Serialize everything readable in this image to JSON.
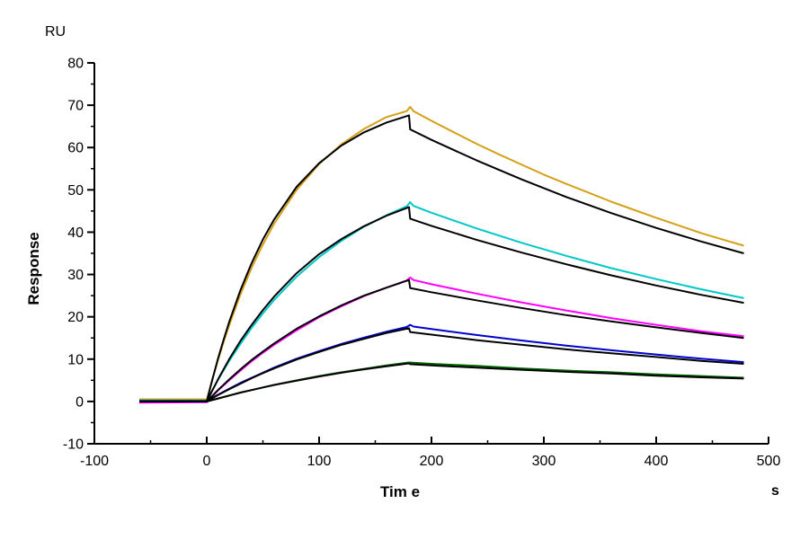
{
  "labels": {
    "response_unit": "RU",
    "y_axis_title": "Response",
    "x_axis_title": "Tim e",
    "x_axis_unit": "s"
  },
  "axes": {
    "x": {
      "range": [
        -100,
        500
      ],
      "major_ticks": [
        -100,
        0,
        100,
        200,
        300,
        400,
        500
      ],
      "minor_ticks": [
        -50,
        50,
        150,
        250,
        350,
        450
      ]
    },
    "y": {
      "range": [
        -10,
        80
      ],
      "major_ticks": [
        -10,
        0,
        10,
        20,
        30,
        40,
        50,
        60,
        70,
        80
      ],
      "minor_ticks": [
        -5,
        5,
        15,
        25,
        35,
        45,
        55,
        65,
        75
      ]
    }
  },
  "chart_data": {
    "type": "line",
    "title": "",
    "xlabel": "Tim e",
    "ylabel": "Response",
    "x_unit": "s",
    "y_unit": "RU",
    "xlim": [
      -100,
      500
    ],
    "ylim": [
      -10,
      80
    ],
    "grid": false,
    "legend": "none",
    "description": "SPR sensorgram: five concentration traces (association 0-180 s, dissociation 180-478 s) each overlaid with a black kinetic fit curve",
    "phases": {
      "baseline_start_s": -60,
      "injection_start_s": 0,
      "injection_stop_s": 180,
      "end_s": 478
    },
    "series": [
      {
        "name": "trace-1-highest",
        "role": "data",
        "color": "#D4A017",
        "points": [
          [
            -60,
            0.5
          ],
          [
            -2,
            0.5
          ],
          [
            0,
            0.4
          ],
          [
            5,
            5.3
          ],
          [
            10,
            9.8
          ],
          [
            15,
            14.1
          ],
          [
            20,
            18.0
          ],
          [
            30,
            25.3
          ],
          [
            40,
            31.6
          ],
          [
            50,
            37.1
          ],
          [
            60,
            42.0
          ],
          [
            80,
            50.0
          ],
          [
            100,
            56.1
          ],
          [
            120,
            60.8
          ],
          [
            140,
            64.4
          ],
          [
            160,
            67.2
          ],
          [
            178,
            68.6
          ],
          [
            181,
            69.6
          ],
          [
            184,
            68.6
          ],
          [
            200,
            66.3
          ],
          [
            220,
            63.6
          ],
          [
            240,
            60.9
          ],
          [
            260,
            58.4
          ],
          [
            280,
            56.0
          ],
          [
            300,
            53.6
          ],
          [
            320,
            51.4
          ],
          [
            340,
            49.3
          ],
          [
            360,
            47.2
          ],
          [
            380,
            45.3
          ],
          [
            400,
            43.4
          ],
          [
            420,
            41.6
          ],
          [
            440,
            39.8
          ],
          [
            460,
            38.2
          ],
          [
            478,
            36.8
          ]
        ]
      },
      {
        "name": "trace-2",
        "role": "data",
        "color": "#00C8C8",
        "points": [
          [
            -60,
            0.25
          ],
          [
            0,
            0.2
          ],
          [
            10,
            5.1
          ],
          [
            20,
            9.6
          ],
          [
            30,
            13.6
          ],
          [
            40,
            17.4
          ],
          [
            50,
            20.8
          ],
          [
            60,
            24.0
          ],
          [
            80,
            29.5
          ],
          [
            100,
            34.1
          ],
          [
            120,
            38.0
          ],
          [
            140,
            41.3
          ],
          [
            160,
            44.0
          ],
          [
            178,
            46.1
          ],
          [
            181,
            47.1
          ],
          [
            184,
            46.2
          ],
          [
            200,
            44.6
          ],
          [
            240,
            40.9
          ],
          [
            280,
            37.5
          ],
          [
            320,
            34.4
          ],
          [
            360,
            31.5
          ],
          [
            400,
            28.9
          ],
          [
            440,
            26.5
          ],
          [
            478,
            24.4
          ]
        ]
      },
      {
        "name": "trace-3",
        "role": "data",
        "color": "#FF00FF",
        "points": [
          [
            -60,
            -0.3
          ],
          [
            0,
            -0.2
          ],
          [
            10,
            2.6
          ],
          [
            20,
            5.0
          ],
          [
            30,
            7.3
          ],
          [
            40,
            9.5
          ],
          [
            50,
            11.5
          ],
          [
            60,
            13.4
          ],
          [
            80,
            16.8
          ],
          [
            100,
            19.9
          ],
          [
            120,
            22.5
          ],
          [
            140,
            24.9
          ],
          [
            160,
            26.9
          ],
          [
            178,
            28.6
          ],
          [
            181,
            29.3
          ],
          [
            184,
            28.7
          ],
          [
            200,
            27.7
          ],
          [
            240,
            25.5
          ],
          [
            280,
            23.4
          ],
          [
            320,
            21.5
          ],
          [
            360,
            19.7
          ],
          [
            400,
            18.1
          ],
          [
            440,
            16.6
          ],
          [
            478,
            15.4
          ]
        ]
      },
      {
        "name": "trace-4",
        "role": "data",
        "color": "#0000CD",
        "points": [
          [
            -60,
            0.1
          ],
          [
            0,
            0.1
          ],
          [
            10,
            1.6
          ],
          [
            20,
            3.0
          ],
          [
            30,
            4.4
          ],
          [
            40,
            5.6
          ],
          [
            50,
            6.8
          ],
          [
            60,
            8.0
          ],
          [
            80,
            10.1
          ],
          [
            100,
            11.9
          ],
          [
            120,
            13.6
          ],
          [
            140,
            15.1
          ],
          [
            160,
            16.5
          ],
          [
            178,
            17.6
          ],
          [
            181,
            18.1
          ],
          [
            184,
            17.7
          ],
          [
            200,
            17.1
          ],
          [
            240,
            15.7
          ],
          [
            280,
            14.4
          ],
          [
            320,
            13.2
          ],
          [
            360,
            12.1
          ],
          [
            400,
            11.1
          ],
          [
            440,
            10.1
          ],
          [
            478,
            9.3
          ]
        ]
      },
      {
        "name": "trace-5-lowest",
        "role": "data",
        "color": "#006400",
        "points": [
          [
            -60,
            0.0
          ],
          [
            0,
            0.0
          ],
          [
            10,
            0.7
          ],
          [
            20,
            1.4
          ],
          [
            30,
            2.1
          ],
          [
            40,
            2.7
          ],
          [
            50,
            3.3
          ],
          [
            60,
            3.9
          ],
          [
            80,
            5.0
          ],
          [
            100,
            6.0
          ],
          [
            120,
            6.9
          ],
          [
            140,
            7.7
          ],
          [
            160,
            8.5
          ],
          [
            180,
            9.2
          ],
          [
            200,
            8.9
          ],
          [
            240,
            8.4
          ],
          [
            280,
            7.8
          ],
          [
            320,
            7.3
          ],
          [
            360,
            6.9
          ],
          [
            400,
            6.4
          ],
          [
            440,
            6.0
          ],
          [
            478,
            5.6
          ]
        ]
      },
      {
        "name": "fit-1",
        "role": "fit",
        "color": "#000000",
        "points": [
          [
            -60,
            0
          ],
          [
            0,
            0
          ],
          [
            5,
            5.2
          ],
          [
            10,
            10.1
          ],
          [
            15,
            14.6
          ],
          [
            20,
            18.8
          ],
          [
            30,
            26.3
          ],
          [
            40,
            32.7
          ],
          [
            50,
            38.3
          ],
          [
            60,
            43.0
          ],
          [
            80,
            50.7
          ],
          [
            100,
            56.3
          ],
          [
            120,
            60.5
          ],
          [
            140,
            63.6
          ],
          [
            160,
            65.9
          ],
          [
            180,
            67.6
          ],
          [
            181,
            64.3
          ],
          [
            200,
            61.8
          ],
          [
            240,
            57.0
          ],
          [
            280,
            52.5
          ],
          [
            320,
            48.3
          ],
          [
            360,
            44.5
          ],
          [
            400,
            41.0
          ],
          [
            440,
            37.8
          ],
          [
            478,
            35.0
          ]
        ]
      },
      {
        "name": "fit-2",
        "role": "fit",
        "color": "#000000",
        "points": [
          [
            -60,
            0
          ],
          [
            0,
            0
          ],
          [
            10,
            5.2
          ],
          [
            20,
            10.0
          ],
          [
            30,
            14.3
          ],
          [
            40,
            18.1
          ],
          [
            50,
            21.6
          ],
          [
            60,
            24.8
          ],
          [
            80,
            30.3
          ],
          [
            100,
            34.8
          ],
          [
            120,
            38.4
          ],
          [
            140,
            41.4
          ],
          [
            160,
            43.9
          ],
          [
            180,
            45.9
          ],
          [
            181,
            43.2
          ],
          [
            200,
            41.5
          ],
          [
            240,
            38.2
          ],
          [
            280,
            35.2
          ],
          [
            320,
            32.4
          ],
          [
            360,
            29.8
          ],
          [
            400,
            27.4
          ],
          [
            440,
            25.2
          ],
          [
            478,
            23.3
          ]
        ]
      },
      {
        "name": "fit-3",
        "role": "fit",
        "color": "#000000",
        "points": [
          [
            -60,
            0
          ],
          [
            0,
            0
          ],
          [
            10,
            2.7
          ],
          [
            20,
            5.2
          ],
          [
            30,
            7.6
          ],
          [
            40,
            9.8
          ],
          [
            50,
            11.8
          ],
          [
            60,
            13.7
          ],
          [
            80,
            17.2
          ],
          [
            100,
            20.1
          ],
          [
            120,
            22.7
          ],
          [
            140,
            25.0
          ],
          [
            160,
            26.9
          ],
          [
            180,
            28.7
          ],
          [
            181,
            26.8
          ],
          [
            200,
            25.8
          ],
          [
            240,
            23.9
          ],
          [
            280,
            22.1
          ],
          [
            320,
            20.4
          ],
          [
            360,
            18.9
          ],
          [
            400,
            17.5
          ],
          [
            440,
            16.2
          ],
          [
            478,
            15.0
          ]
        ]
      },
      {
        "name": "fit-4",
        "role": "fit",
        "color": "#000000",
        "points": [
          [
            -60,
            0
          ],
          [
            0,
            0
          ],
          [
            10,
            1.5
          ],
          [
            20,
            2.9
          ],
          [
            30,
            4.2
          ],
          [
            40,
            5.5
          ],
          [
            50,
            6.7
          ],
          [
            60,
            7.8
          ],
          [
            80,
            9.9
          ],
          [
            100,
            11.7
          ],
          [
            120,
            13.4
          ],
          [
            140,
            14.8
          ],
          [
            160,
            16.2
          ],
          [
            180,
            17.3
          ],
          [
            181,
            16.4
          ],
          [
            200,
            15.8
          ],
          [
            240,
            14.5
          ],
          [
            280,
            13.4
          ],
          [
            320,
            12.3
          ],
          [
            360,
            11.4
          ],
          [
            400,
            10.5
          ],
          [
            440,
            9.6
          ],
          [
            478,
            8.9
          ]
        ]
      },
      {
        "name": "fit-5",
        "role": "fit",
        "color": "#000000",
        "points": [
          [
            -60,
            0
          ],
          [
            0,
            0
          ],
          [
            10,
            0.7
          ],
          [
            20,
            1.4
          ],
          [
            30,
            2.1
          ],
          [
            40,
            2.7
          ],
          [
            50,
            3.3
          ],
          [
            60,
            3.9
          ],
          [
            80,
            4.9
          ],
          [
            100,
            5.9
          ],
          [
            120,
            6.8
          ],
          [
            140,
            7.6
          ],
          [
            160,
            8.3
          ],
          [
            180,
            9.0
          ],
          [
            181,
            8.8
          ],
          [
            200,
            8.5
          ],
          [
            240,
            8.0
          ],
          [
            280,
            7.5
          ],
          [
            320,
            7.0
          ],
          [
            360,
            6.6
          ],
          [
            400,
            6.1
          ],
          [
            440,
            5.7
          ],
          [
            478,
            5.4
          ]
        ]
      }
    ]
  }
}
